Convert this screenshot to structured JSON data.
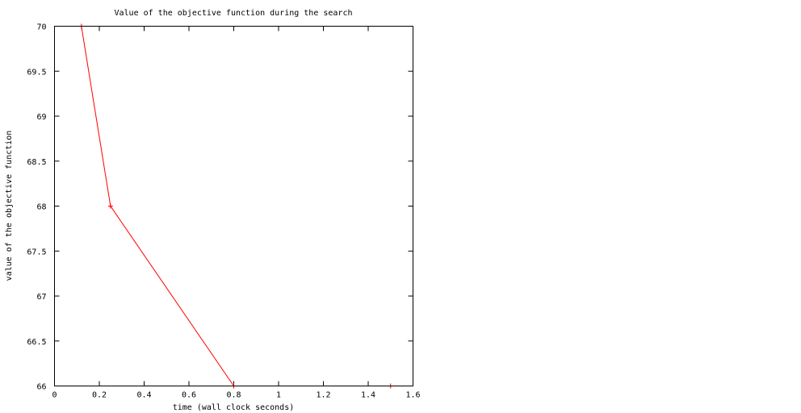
{
  "chart_data": {
    "type": "line",
    "title": "Value of the objective function during the search",
    "xlabel": "time (wall clock seconds)",
    "ylabel": "value of the objective function",
    "xlim": [
      0,
      1.6
    ],
    "ylim": [
      66,
      70
    ],
    "xticks": [
      "0",
      "0.2",
      "0.4",
      "0.6",
      "0.8",
      "1",
      "1.2",
      "1.4",
      "1.6"
    ],
    "yticks": [
      "66",
      "66.5",
      "67",
      "67.5",
      "68",
      "68.5",
      "69",
      "69.5",
      "70"
    ],
    "grid": false,
    "series": [
      {
        "color": "#ff0000",
        "marker": "plus",
        "points": [
          [
            0.12,
            70
          ],
          [
            0.25,
            68
          ],
          [
            0.8,
            66
          ],
          [
            1.5,
            66
          ]
        ]
      }
    ]
  }
}
